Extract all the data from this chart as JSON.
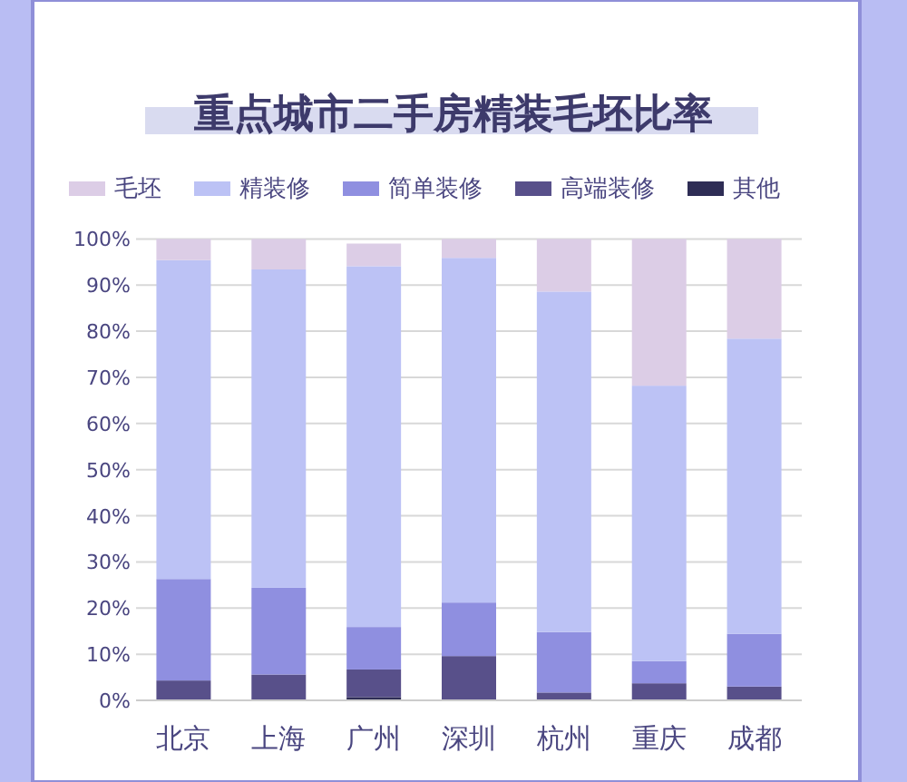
{
  "chart_data": {
    "type": "bar",
    "stacked": true,
    "title": "重点城市二手房精装毛坯比率",
    "categories": [
      "北京",
      "上海",
      "广州",
      "深圳",
      "杭州",
      "重庆",
      "成都"
    ],
    "series": [
      {
        "name": "其他",
        "color": "#2e2d55",
        "values": [
          0,
          0,
          0.7,
          0,
          0,
          0,
          0
        ]
      },
      {
        "name": "高端装修",
        "color": "#58508a",
        "values": [
          4.3,
          5.6,
          6.0,
          9.6,
          1.7,
          3.7,
          3.0
        ]
      },
      {
        "name": "简单装修",
        "color": "#8f8fe0",
        "values": [
          22.0,
          18.8,
          9.2,
          11.6,
          13.1,
          4.8,
          11.4
        ]
      },
      {
        "name": "精装修",
        "color": "#bcc2f5",
        "values": [
          69.1,
          69.0,
          78.2,
          74.7,
          73.8,
          59.7,
          64.0
        ]
      },
      {
        "name": "毛坯",
        "color": "#dccde6",
        "values": [
          4.6,
          6.6,
          4.9,
          4.1,
          11.4,
          31.8,
          21.6
        ]
      }
    ],
    "ylim": [
      0,
      100
    ],
    "yticks": [
      {
        "value": 0,
        "label": "0%"
      },
      {
        "value": 10,
        "label": "10%"
      },
      {
        "value": 20,
        "label": "20%"
      },
      {
        "value": 30,
        "label": "30%"
      },
      {
        "value": 40,
        "label": "40%"
      },
      {
        "value": 50,
        "label": "50%"
      },
      {
        "value": 60,
        "label": "60%"
      },
      {
        "value": 70,
        "label": "70%"
      },
      {
        "value": 80,
        "label": "80%"
      },
      {
        "value": 90,
        "label": "90%"
      },
      {
        "value": 100,
        "label": "100%"
      }
    ],
    "grid": "y",
    "legend": "top"
  }
}
